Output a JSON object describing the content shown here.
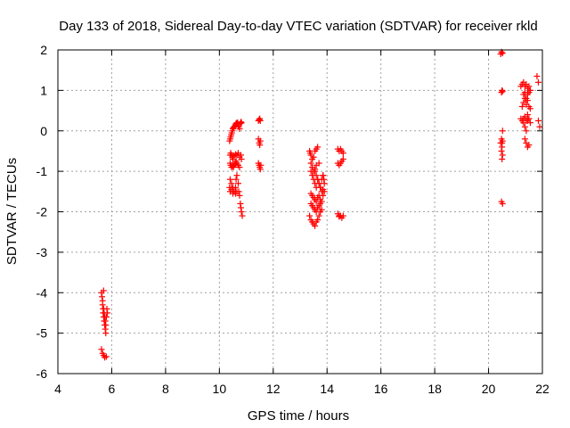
{
  "chart_data": {
    "type": "scatter",
    "title": "Day 133 of 2018, Sidereal Day-to-day VTEC variation (SDTVAR) for receiver rkld",
    "xlabel": "GPS time / hours",
    "ylabel": "SDTVAR / TECUs",
    "xlim": [
      4,
      22
    ],
    "ylim": [
      -6,
      2
    ],
    "xticks": [
      "4",
      "6",
      "8",
      "10",
      "12",
      "14",
      "16",
      "18",
      "20",
      "22"
    ],
    "yticks": [
      "-6",
      "-5",
      "-4",
      "-3",
      "-2",
      "-1",
      "0",
      "1",
      "2"
    ],
    "grid": true,
    "marker": "+",
    "color": "#ff0000",
    "series": [
      {
        "x": [
          5.62,
          5.64,
          5.66,
          5.66,
          5.68,
          5.68,
          5.7,
          5.7,
          5.72,
          5.72,
          5.74,
          5.74,
          5.76,
          5.76,
          5.78,
          5.78,
          5.8,
          5.62,
          5.66,
          5.7,
          5.74,
          5.8,
          5.82,
          5.84,
          5.7,
          10.38,
          10.4,
          10.42,
          10.44,
          10.46,
          10.48,
          10.5,
          10.52,
          10.55,
          10.58,
          10.6,
          10.62,
          10.65,
          10.68,
          10.7,
          10.72,
          10.75,
          10.78,
          10.8,
          10.82,
          10.4,
          10.42,
          10.45,
          10.48,
          10.5,
          10.55,
          10.6,
          10.65,
          10.7,
          10.75,
          10.8,
          10.82,
          10.4,
          10.42,
          10.45,
          10.48,
          10.5,
          10.52,
          10.55,
          10.58,
          10.6,
          10.62,
          10.65,
          10.7,
          10.75,
          10.4,
          10.45,
          10.5,
          10.55,
          10.6,
          10.62,
          10.65,
          10.7,
          10.72,
          10.75,
          10.78,
          10.8,
          10.82,
          10.85,
          10.38,
          10.4,
          10.45,
          10.5,
          10.55,
          10.6,
          10.65,
          11.45,
          11.48,
          11.5,
          11.52,
          11.45,
          11.48,
          11.5,
          11.52,
          11.45,
          11.48,
          11.5,
          11.52,
          11.54,
          13.35,
          13.38,
          13.4,
          13.45,
          13.5,
          13.55,
          13.6,
          13.65,
          13.4,
          13.45,
          13.5,
          13.55,
          13.6,
          13.7,
          13.4,
          13.45,
          13.5,
          13.55,
          13.6,
          13.65,
          13.7,
          13.75,
          13.8,
          13.85,
          13.4,
          13.45,
          13.5,
          13.55,
          13.6,
          13.65,
          13.7,
          13.75,
          13.8,
          13.85,
          13.9,
          13.35,
          13.4,
          13.45,
          13.5,
          13.55,
          13.6,
          13.65,
          13.7,
          13.75,
          13.8,
          13.4,
          13.45,
          13.5,
          13.55,
          13.6,
          13.65,
          13.7,
          13.75,
          13.55,
          13.6,
          13.65,
          13.7,
          13.75,
          13.8,
          13.85,
          13.9,
          13.88,
          13.85,
          14.4,
          14.45,
          14.5,
          14.55,
          14.6,
          14.4,
          14.45,
          14.5,
          14.55,
          14.6,
          14.4,
          14.45,
          14.5,
          14.55,
          14.6,
          14.45,
          20.45,
          20.48,
          20.52,
          20.5,
          20.48,
          20.52,
          20.45,
          20.48,
          20.5,
          20.52,
          20.48,
          20.52,
          20.5,
          20.48,
          20.52,
          20.5,
          20.52,
          21.2,
          21.25,
          21.3,
          21.35,
          21.4,
          21.45,
          21.5,
          21.55,
          21.3,
          21.35,
          21.4,
          21.45,
          21.5,
          21.55,
          21.25,
          21.3,
          21.35,
          21.4,
          21.45,
          21.5,
          21.55,
          21.3,
          21.35,
          21.4,
          21.45,
          21.5,
          21.2,
          21.25,
          21.3,
          21.35,
          21.4,
          21.45,
          21.5,
          21.55,
          21.35,
          21.4,
          21.45,
          21.5,
          21.8,
          21.85,
          21.85,
          21.9
        ],
        "y": [
          -4.0,
          -4.1,
          -4.2,
          -4.3,
          -4.4,
          -4.5,
          -4.4,
          -4.6,
          -4.7,
          -4.5,
          -4.8,
          -4.6,
          -4.7,
          -4.9,
          -4.8,
          -5.0,
          -4.6,
          -5.4,
          -5.5,
          -5.55,
          -5.6,
          -5.58,
          -4.4,
          -4.5,
          -3.95,
          -0.25,
          -0.2,
          -0.15,
          -0.1,
          -0.05,
          0.0,
          0.05,
          0.08,
          0.1,
          0.12,
          0.15,
          0.18,
          0.2,
          0.2,
          0.15,
          0.1,
          0.05,
          0.18,
          0.22,
          0.2,
          -0.6,
          -0.55,
          -0.6,
          -0.65,
          -0.7,
          -0.62,
          -0.58,
          -0.6,
          -0.55,
          -0.65,
          -0.6,
          -0.7,
          -0.8,
          -0.85,
          -0.9,
          -0.85,
          -0.88,
          -0.9,
          -0.85,
          -0.8,
          -0.82,
          -0.75,
          -0.8,
          -0.85,
          -0.9,
          -1.2,
          -1.3,
          -1.4,
          -1.5,
          -1.55,
          -1.2,
          -1.1,
          -1.3,
          -1.5,
          -1.6,
          -1.8,
          -1.9,
          -2.0,
          -2.1,
          -1.4,
          -1.5,
          -1.45,
          -1.55,
          -1.5,
          -1.4,
          -1.5,
          0.25,
          0.28,
          0.3,
          0.25,
          -0.2,
          -0.3,
          -0.35,
          -0.25,
          -0.8,
          -0.85,
          -0.9,
          -0.95,
          -0.85,
          -0.5,
          -0.55,
          -0.6,
          -0.7,
          -0.65,
          -0.5,
          -0.45,
          -0.4,
          -0.8,
          -0.9,
          -1.0,
          -0.95,
          -0.85,
          -0.8,
          -1.0,
          -1.1,
          -1.2,
          -1.3,
          -1.4,
          -1.2,
          -1.3,
          -1.4,
          -1.2,
          -1.1,
          -1.55,
          -1.6,
          -1.65,
          -1.7,
          -1.75,
          -1.65,
          -1.6,
          -1.7,
          -1.75,
          -1.6,
          -1.5,
          -2.1,
          -2.2,
          -2.25,
          -2.3,
          -2.35,
          -2.25,
          -2.2,
          -2.1,
          -2.0,
          -1.95,
          -1.8,
          -1.85,
          -1.9,
          -1.95,
          -2.0,
          -1.9,
          -1.85,
          -1.8,
          -1.0,
          -1.1,
          -1.2,
          -1.3,
          -1.4,
          -1.5,
          -1.45,
          -1.3,
          -1.2,
          -1.1,
          -0.45,
          -0.5,
          -0.45,
          -0.5,
          -0.55,
          -0.8,
          -0.85,
          -0.8,
          -0.75,
          -0.7,
          -2.05,
          -2.1,
          -2.1,
          -2.15,
          -2.1,
          -2.12,
          1.9,
          1.95,
          1.92,
          1.0,
          0.95,
          0.98,
          -0.3,
          -0.2,
          -0.4,
          -0.25,
          -0.5,
          -0.6,
          -0.7,
          -1.75,
          -1.8,
          -0.3,
          0.0,
          1.1,
          1.15,
          1.2,
          1.1,
          1.15,
          1.05,
          1.1,
          1.0,
          0.9,
          0.95,
          0.8,
          0.9,
          0.95,
          1.0,
          0.6,
          0.7,
          0.8,
          0.65,
          0.75,
          0.6,
          0.55,
          0.3,
          0.35,
          0.25,
          0.4,
          0.3,
          0.3,
          0.25,
          0.2,
          0.1,
          0.0,
          0.25,
          0.3,
          0.2,
          -0.2,
          -0.3,
          -0.4,
          -0.35,
          1.35,
          1.2,
          0.25,
          0.1
        ]
      }
    ]
  }
}
